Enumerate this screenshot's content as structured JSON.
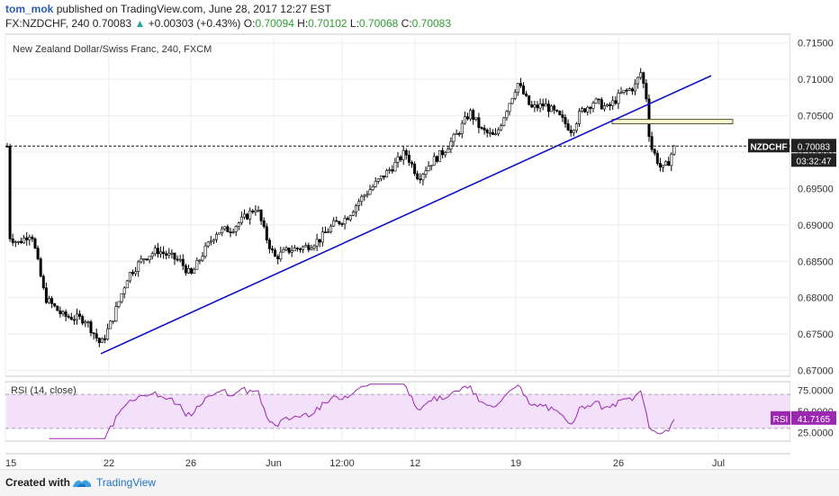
{
  "header": {
    "user": "tom_mok",
    "published": "published on TradingView.com, June 28, 2017 12:27 EST",
    "symbol_tf": "FX:NZDCHF, 240",
    "last": "0.70083",
    "arrow": "▲",
    "change": "+0.00303 (+0.43%)",
    "o_label": "O:",
    "o": "0.70094",
    "h_label": "H:",
    "h": "0.70102",
    "l_label": "L:",
    "l": "0.70068",
    "c_label": "C:",
    "c": "0.70083"
  },
  "chart_data": {
    "type": "candlestick",
    "title": "New Zealand Dollar/Swiss Franc, 240, FXCM",
    "symbol_label": "NZDCHF",
    "last_price_label": "0.70083",
    "countdown": "03:32:47",
    "last_price": 0.70083,
    "ylim": [
      0.6692,
      0.7162
    ],
    "y_ticks": [
      0.715,
      0.71,
      0.705,
      0.7,
      0.695,
      0.69,
      0.685,
      0.68,
      0.675,
      0.67
    ],
    "y_tick_labels": [
      "0.71500",
      "0.71000",
      "0.70500",
      "0.70000",
      "0.69500",
      "0.69000",
      "0.68500",
      "0.68000",
      "0.67500",
      "0.67000"
    ],
    "x_tick_labels": [
      "15",
      "22",
      "26",
      "Jun",
      "12:00",
      "12",
      "19",
      "26",
      "Jul"
    ],
    "trendline": {
      "start_price": 0.6723,
      "end_price": 0.7105
    },
    "resistance_zone": {
      "low": 0.7039,
      "high": 0.7045
    },
    "colors": {
      "up": "#ffffff",
      "down": "#000000",
      "wick": "#000000",
      "trendline": "#1010c8",
      "zone": "#f7f7d0",
      "zone_border": "#555533",
      "rsi_line": "#9c27b0",
      "rsi_band": "#f3e0fa"
    },
    "rsi": {
      "label": "RSI (14, close)",
      "badge_label": "RSI",
      "value_label": "41.7165",
      "ylim": [
        15,
        85
      ],
      "band": [
        30,
        70
      ],
      "y_ticks": [
        75,
        50,
        25
      ],
      "y_tick_labels": [
        "75.0000",
        "50.0000",
        "25.0000"
      ]
    }
  },
  "footer": {
    "created": "Created with",
    "brand": "TradingView"
  }
}
